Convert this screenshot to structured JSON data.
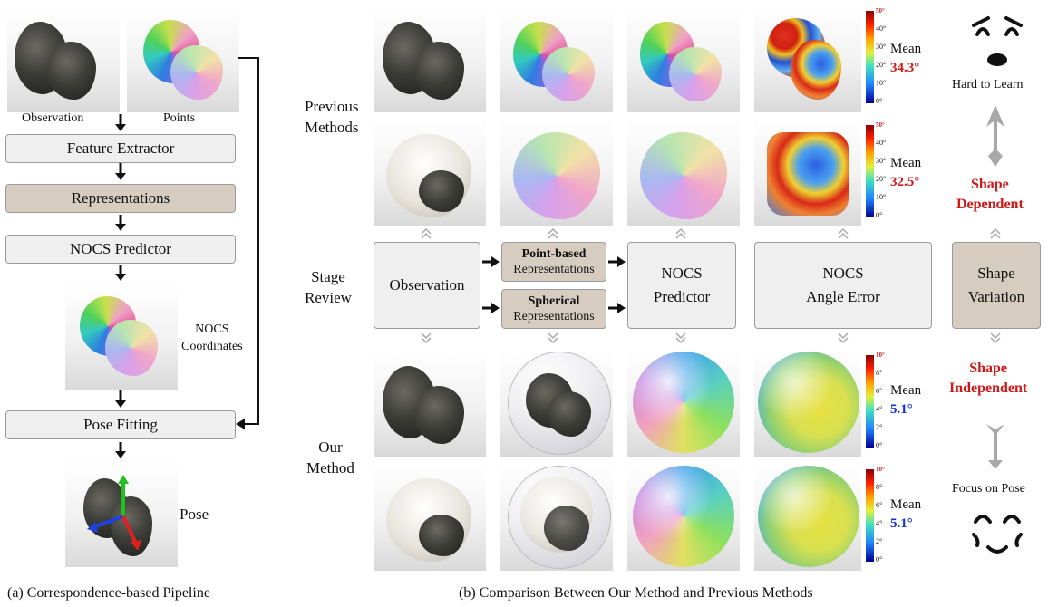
{
  "left": {
    "observation_label": "Observation",
    "points_label": "Points",
    "feature_extractor": "Feature Extractor",
    "representations": "Representations",
    "nocs_predictor": "NOCS Predictor",
    "nocs_coordinates_l1": "NOCS",
    "nocs_coordinates_l2": "Coordinates",
    "pose_fitting": "Pose Fitting",
    "pose_label": "Pose",
    "caption": "(a) Correspondence-based Pipeline"
  },
  "right": {
    "previous_methods_l1": "Previous",
    "previous_methods_l2": "Methods",
    "stage_review_l1": "Stage",
    "stage_review_l2": "Review",
    "our_method_l1": "Our",
    "our_method_l2": "Method",
    "observation_box": "Observation",
    "point_based_bold": "Point-based",
    "point_based_rest": "Representations",
    "spherical_bold": "Spherical",
    "spherical_rest": "Representations",
    "nocs_predictor_l1": "NOCS",
    "nocs_predictor_l2": "Predictor",
    "angle_error_l1": "NOCS",
    "angle_error_l2": "Angle Error",
    "shape_variation_l1": "Shape",
    "shape_variation_l2": "Variation",
    "hard_to_learn": "Hard to Learn",
    "shape_dependent_l1": "Shape",
    "shape_dependent_l2": "Dependent",
    "shape_independent_l1": "Shape",
    "shape_independent_l2": "Independent",
    "focus_on_pose": "Focus on Pose",
    "mean_label": "Mean",
    "mean_values": [
      "34.3°",
      "32.5°",
      "5.1°",
      "5.1°"
    ],
    "colorbar_top_ticks": [
      "50°",
      "40°",
      "30°",
      "20°",
      "10°",
      "0°"
    ],
    "colorbar_bottom_ticks": [
      "10°",
      "8°",
      "6°",
      "4°",
      "2°",
      "0°"
    ],
    "caption": "(b) Comparison Between Our Method and Previous Methods"
  },
  "colors": {
    "accent_red": "#d01818",
    "accent_blue": "#1030d0",
    "tan_box": "#d6ccbf",
    "gray_box": "#efefef"
  }
}
